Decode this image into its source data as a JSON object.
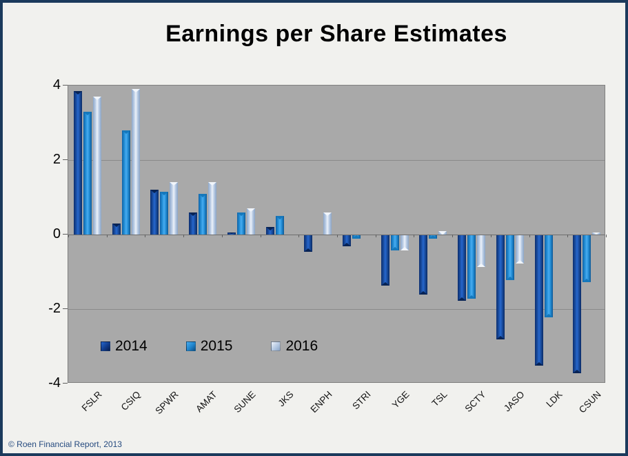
{
  "window": {
    "footer": "© Roen Financial Report, 2013"
  },
  "chart_data": {
    "type": "bar",
    "title": "Earnings per Share Estimates",
    "xlabel": "",
    "ylabel": "",
    "ylim": [
      -4,
      4
    ],
    "yticks": [
      4,
      2,
      0,
      -2,
      -4
    ],
    "grid": true,
    "plot_bg_color": "#A9A9A9",
    "legend_position": "inside-bottom-left",
    "categories": [
      "FSLR",
      "CSIQ",
      "SPWR",
      "AMAT",
      "SUNE",
      "JKS",
      "ENPH",
      "STRI",
      "YGE",
      "TSL",
      "SCTY",
      "JASO",
      "LDK",
      "CSUN"
    ],
    "series": [
      {
        "name": "2014",
        "color": "#1F4FA5",
        "values": [
          3.85,
          0.3,
          1.2,
          0.6,
          0.05,
          0.2,
          -0.45,
          -0.3,
          -1.35,
          -1.6,
          -1.75,
          -2.8,
          -3.5,
          -3.7
        ]
      },
      {
        "name": "2015",
        "color": "#2E96DC",
        "values": [
          3.3,
          2.8,
          1.15,
          1.1,
          0.6,
          0.5,
          0,
          -0.1,
          -0.4,
          -0.1,
          -1.7,
          -1.2,
          -2.2,
          -1.25
        ]
      },
      {
        "name": "2016",
        "color": "#BDCFE7",
        "values": [
          3.7,
          3.9,
          1.4,
          1.4,
          0.7,
          0,
          0.6,
          0,
          -0.4,
          0.1,
          -0.85,
          -0.75,
          0,
          0.05
        ]
      }
    ]
  }
}
